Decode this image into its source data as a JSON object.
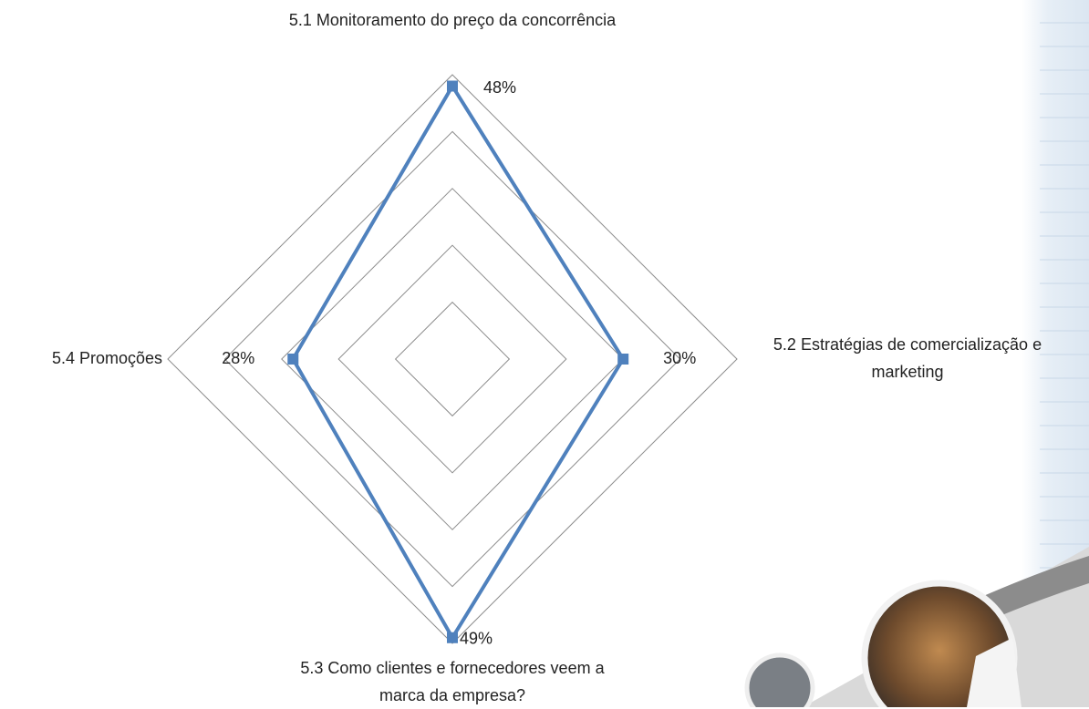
{
  "chart_data": {
    "type": "radar",
    "categories": [
      "5.1 Monitoramento do preço da concorrência",
      "5.2 Estratégias de comercialização e marketing",
      "5.3 Como clientes e fornecedores veem a marca da empresa?",
      "5.4 Promoções"
    ],
    "values": [
      48,
      30,
      49,
      28
    ],
    "value_labels": [
      "48%",
      "30%",
      "49%",
      "28%"
    ],
    "color": "#4f81bd",
    "rlim": [
      0,
      50
    ],
    "rticks": [
      10,
      20,
      30,
      40,
      50
    ],
    "grid": true
  }
}
